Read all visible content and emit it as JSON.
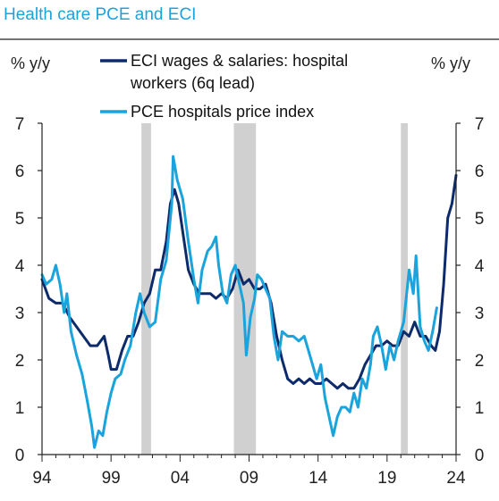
{
  "chart_data": {
    "type": "line",
    "title": "Health care PCE and ECI",
    "ylabel_left": "% y/y",
    "ylabel_right": "% y/y",
    "ylim": [
      0,
      7
    ],
    "yticks": [
      "0",
      "1",
      "2",
      "3",
      "4",
      "5",
      "6",
      "7"
    ],
    "xlim": [
      1994,
      2024
    ],
    "xticks": [
      {
        "label": "94",
        "x": 1994
      },
      {
        "label": "99",
        "x": 1999
      },
      {
        "label": "04",
        "x": 2004
      },
      {
        "label": "09",
        "x": 2009
      },
      {
        "label": "14",
        "x": 2014
      },
      {
        "label": "19",
        "x": 2019
      },
      {
        "label": "24",
        "x": 2024
      }
    ],
    "recessions": [
      [
        2001.2,
        2001.9
      ],
      [
        2007.9,
        2009.5
      ],
      [
        2020.0,
        2020.5
      ]
    ],
    "legend": {
      "eci_line1": "ECI wages & salaries: hospital",
      "eci_line2": "workers (6q lead)",
      "pce": "PCE hospitals price index"
    },
    "series": [
      {
        "name": "ECI wages & salaries: hospital workers (6q lead)",
        "color": "#0d2b6b",
        "points": [
          [
            1994.0,
            3.7
          ],
          [
            1994.5,
            3.3
          ],
          [
            1995.0,
            3.2
          ],
          [
            1995.5,
            3.2
          ],
          [
            1996.0,
            2.9
          ],
          [
            1996.5,
            2.7
          ],
          [
            1997.0,
            2.5
          ],
          [
            1997.5,
            2.3
          ],
          [
            1998.0,
            2.3
          ],
          [
            1998.5,
            2.5
          ],
          [
            1998.8,
            2.1
          ],
          [
            1999.0,
            1.8
          ],
          [
            1999.4,
            1.8
          ],
          [
            1999.8,
            2.2
          ],
          [
            2000.2,
            2.5
          ],
          [
            2000.6,
            2.5
          ],
          [
            2001.0,
            2.8
          ],
          [
            2001.4,
            3.2
          ],
          [
            2001.8,
            3.4
          ],
          [
            2002.2,
            3.9
          ],
          [
            2002.6,
            3.9
          ],
          [
            2003.0,
            4.5
          ],
          [
            2003.3,
            5.3
          ],
          [
            2003.6,
            5.6
          ],
          [
            2003.9,
            5.3
          ],
          [
            2004.2,
            4.7
          ],
          [
            2004.6,
            3.9
          ],
          [
            2005.0,
            3.6
          ],
          [
            2005.4,
            3.4
          ],
          [
            2005.8,
            3.4
          ],
          [
            2006.2,
            3.4
          ],
          [
            2006.6,
            3.3
          ],
          [
            2007.0,
            3.4
          ],
          [
            2007.4,
            3.3
          ],
          [
            2007.8,
            3.5
          ],
          [
            2008.2,
            3.9
          ],
          [
            2008.6,
            3.6
          ],
          [
            2009.0,
            3.7
          ],
          [
            2009.4,
            3.5
          ],
          [
            2009.8,
            3.5
          ],
          [
            2010.2,
            3.6
          ],
          [
            2010.6,
            3.2
          ],
          [
            2011.0,
            2.5
          ],
          [
            2011.4,
            2.0
          ],
          [
            2011.8,
            1.6
          ],
          [
            2012.2,
            1.5
          ],
          [
            2012.6,
            1.6
          ],
          [
            2013.0,
            1.5
          ],
          [
            2013.4,
            1.6
          ],
          [
            2013.8,
            1.5
          ],
          [
            2014.2,
            1.5
          ],
          [
            2014.6,
            1.6
          ],
          [
            2015.0,
            1.5
          ],
          [
            2015.4,
            1.4
          ],
          [
            2015.8,
            1.5
          ],
          [
            2016.2,
            1.4
          ],
          [
            2016.6,
            1.4
          ],
          [
            2017.0,
            1.6
          ],
          [
            2017.4,
            1.9
          ],
          [
            2017.8,
            2.1
          ],
          [
            2018.2,
            2.3
          ],
          [
            2018.6,
            2.3
          ],
          [
            2019.0,
            2.4
          ],
          [
            2019.4,
            2.3
          ],
          [
            2019.8,
            2.3
          ],
          [
            2020.2,
            2.6
          ],
          [
            2020.6,
            2.5
          ],
          [
            2021.0,
            2.8
          ],
          [
            2021.4,
            2.5
          ],
          [
            2021.8,
            2.5
          ],
          [
            2022.2,
            2.3
          ],
          [
            2022.5,
            2.2
          ],
          [
            2022.8,
            2.6
          ],
          [
            2023.1,
            3.6
          ],
          [
            2023.4,
            5.0
          ],
          [
            2023.7,
            5.3
          ],
          [
            2024.0,
            5.9
          ]
        ]
      },
      {
        "name": "PCE hospitals price index",
        "color": "#1ba3dc",
        "points": [
          [
            1994.0,
            3.8
          ],
          [
            1994.3,
            3.6
          ],
          [
            1994.7,
            3.7
          ],
          [
            1995.0,
            4.0
          ],
          [
            1995.3,
            3.6
          ],
          [
            1995.6,
            3.0
          ],
          [
            1995.8,
            3.4
          ],
          [
            1996.1,
            2.6
          ],
          [
            1996.5,
            2.1
          ],
          [
            1996.9,
            1.7
          ],
          [
            1997.3,
            1.1
          ],
          [
            1997.6,
            0.6
          ],
          [
            1997.8,
            0.15
          ],
          [
            1998.1,
            0.5
          ],
          [
            1998.4,
            0.4
          ],
          [
            1998.7,
            0.9
          ],
          [
            1999.0,
            1.3
          ],
          [
            1999.3,
            1.6
          ],
          [
            1999.7,
            1.7
          ],
          [
            2000.0,
            2.0
          ],
          [
            2000.4,
            2.3
          ],
          [
            2000.8,
            3.0
          ],
          [
            2001.1,
            3.4
          ],
          [
            2001.4,
            3.0
          ],
          [
            2001.8,
            2.7
          ],
          [
            2002.2,
            2.8
          ],
          [
            2002.6,
            3.7
          ],
          [
            2003.0,
            4.1
          ],
          [
            2003.4,
            5.3
          ],
          [
            2003.5,
            6.3
          ],
          [
            2003.8,
            5.8
          ],
          [
            2004.2,
            5.4
          ],
          [
            2004.6,
            4.5
          ],
          [
            2005.0,
            3.7
          ],
          [
            2005.3,
            3.2
          ],
          [
            2005.6,
            3.9
          ],
          [
            2006.0,
            4.3
          ],
          [
            2006.3,
            4.4
          ],
          [
            2006.6,
            4.6
          ],
          [
            2006.8,
            4.0
          ],
          [
            2007.1,
            3.4
          ],
          [
            2007.4,
            3.2
          ],
          [
            2007.7,
            3.8
          ],
          [
            2008.0,
            4.0
          ],
          [
            2008.3,
            3.6
          ],
          [
            2008.6,
            3.2
          ],
          [
            2008.8,
            2.1
          ],
          [
            2009.1,
            2.9
          ],
          [
            2009.4,
            3.3
          ],
          [
            2009.6,
            3.8
          ],
          [
            2009.9,
            3.7
          ],
          [
            2010.2,
            3.5
          ],
          [
            2010.5,
            3.3
          ],
          [
            2010.8,
            2.5
          ],
          [
            2011.1,
            2.0
          ],
          [
            2011.4,
            2.6
          ],
          [
            2011.8,
            2.5
          ],
          [
            2012.2,
            2.5
          ],
          [
            2012.6,
            2.4
          ],
          [
            2013.0,
            2.5
          ],
          [
            2013.3,
            2.2
          ],
          [
            2013.6,
            1.9
          ],
          [
            2013.9,
            1.6
          ],
          [
            2014.2,
            1.9
          ],
          [
            2014.5,
            1.2
          ],
          [
            2014.8,
            0.8
          ],
          [
            2015.1,
            0.4
          ],
          [
            2015.4,
            0.8
          ],
          [
            2015.7,
            1.0
          ],
          [
            2016.0,
            1.0
          ],
          [
            2016.3,
            0.9
          ],
          [
            2016.6,
            1.3
          ],
          [
            2016.9,
            1.0
          ],
          [
            2017.2,
            1.6
          ],
          [
            2017.5,
            1.4
          ],
          [
            2017.8,
            1.9
          ],
          [
            2018.0,
            2.5
          ],
          [
            2018.3,
            2.7
          ],
          [
            2018.6,
            2.3
          ],
          [
            2018.9,
            1.8
          ],
          [
            2019.2,
            2.3
          ],
          [
            2019.5,
            2.0
          ],
          [
            2019.8,
            2.4
          ],
          [
            2020.2,
            2.8
          ],
          [
            2020.6,
            3.9
          ],
          [
            2020.9,
            3.4
          ],
          [
            2021.1,
            4.2
          ],
          [
            2021.4,
            2.7
          ],
          [
            2021.7,
            2.4
          ],
          [
            2022.0,
            2.2
          ],
          [
            2022.3,
            2.6
          ],
          [
            2022.6,
            3.1
          ]
        ]
      }
    ]
  }
}
